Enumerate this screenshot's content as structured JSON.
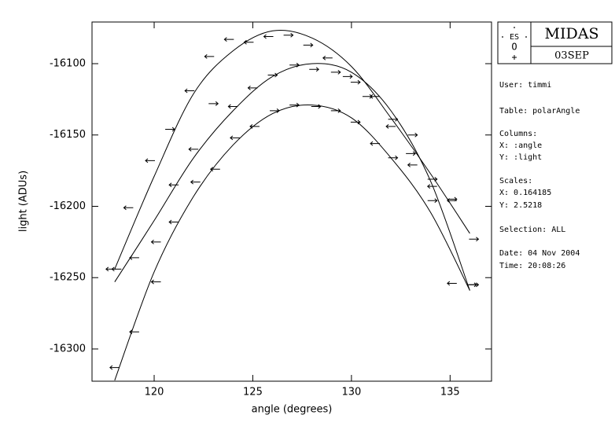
{
  "chart_data": {
    "type": "scatter",
    "xlabel": "angle (degrees)",
    "ylabel": "light (ADUs)",
    "xlim": [
      116.85,
      137.1
    ],
    "ylim": [
      -16322.6,
      -16070.8
    ],
    "xticks": [
      120,
      125,
      130,
      135
    ],
    "yticks": [
      -16300,
      -16250,
      -16200,
      -16150,
      -16100
    ],
    "color": "#000000",
    "series": [
      {
        "x": [
          117.8,
          118.7,
          119.8,
          120.8,
          121.8,
          122.8,
          123.8,
          124.8,
          125.8,
          126.8,
          127.8,
          128.8,
          129.8,
          130.8,
          132.0,
          133.0,
          134.1,
          135.1,
          136.2
        ],
        "values": [
          -16244,
          -16201,
          -16168,
          -16146,
          -16119,
          -16095,
          -16083,
          -16085,
          -16081,
          -16080,
          -16087,
          -16096,
          -16109,
          -16123,
          -16144,
          -16163,
          -16186,
          -16195,
          -16223
        ],
        "markers": [
          "left",
          "left",
          "left",
          "right",
          "left",
          "left",
          "left",
          "left",
          "left",
          "right",
          "right",
          "left",
          "right",
          "right",
          "left",
          "right",
          "left",
          "right",
          "right"
        ]
      },
      {
        "x": [
          118.1,
          119.0,
          120.1,
          121.0,
          122.0,
          123.0,
          124.0,
          125.0,
          126.0,
          127.1,
          128.1,
          129.2,
          130.2,
          131.2,
          132.1,
          133.1,
          134.1,
          135.1,
          136.1
        ],
        "values": [
          -16244,
          -16236,
          -16225,
          -16185,
          -16160,
          -16128,
          -16130,
          -16117,
          -16108,
          -16101,
          -16104,
          -16106,
          -16113,
          -16123,
          -16139,
          -16150,
          -16181,
          -16196,
          -16255
        ],
        "markers": [
          "left",
          "left",
          "left",
          "left",
          "left",
          "right",
          "left",
          "left",
          "right",
          "right",
          "right",
          "right",
          "right",
          "left",
          "right",
          "right",
          "right",
          "left",
          "right"
        ]
      },
      {
        "x": [
          118.0,
          119.0,
          120.1,
          121.0,
          122.1,
          123.1,
          124.1,
          125.1,
          126.1,
          127.1,
          128.2,
          129.2,
          130.2,
          131.2,
          132.1,
          133.1,
          134.1,
          135.1,
          136.2
        ],
        "values": [
          -16313,
          -16288,
          -16253,
          -16211,
          -16183,
          -16174,
          -16152,
          -16144,
          -16133,
          -16129,
          -16130,
          -16133,
          -16141,
          -16156,
          -16166,
          -16171,
          -16196,
          -16254,
          -16255
        ],
        "markers": [
          "left",
          "left",
          "left",
          "left",
          "left",
          "left",
          "left",
          "left",
          "right",
          "right",
          "right",
          "right",
          "right",
          "left",
          "right",
          "left",
          "right",
          "left",
          "right"
        ]
      }
    ],
    "fit_x": [
      118,
      120,
      122,
      124,
      126,
      128,
      130,
      132,
      134,
      136
    ],
    "fits": [
      {
        "values": [
          -16244,
          -16179,
          -16121,
          -16091,
          -16077,
          -16082,
          -16102,
          -16138,
          -16177,
          -16219
        ]
      },
      {
        "values": [
          -16253,
          -16210,
          -16166,
          -16133,
          -16109,
          -16100,
          -16106,
          -16133,
          -16182,
          -16259
        ]
      },
      {
        "values": [
          -16322,
          -16246,
          -16193,
          -16157,
          -16135,
          -16129,
          -16138,
          -16166,
          -16204,
          -16259
        ]
      }
    ]
  },
  "panel": {
    "logo_top": "ES",
    "logo_bottom": "O",
    "title": "MIDAS",
    "subtitle": "03SEP",
    "lines": [
      "User: timmi",
      "Table: polarAngle",
      "Columns:",
      "X: :angle",
      "Y: :light",
      "Scales:",
      "X: 0.164185",
      "Y: 2.5218",
      "Selection:  ALL",
      "Date: 04 Nov 2004",
      "Time: 20:08:26"
    ]
  }
}
